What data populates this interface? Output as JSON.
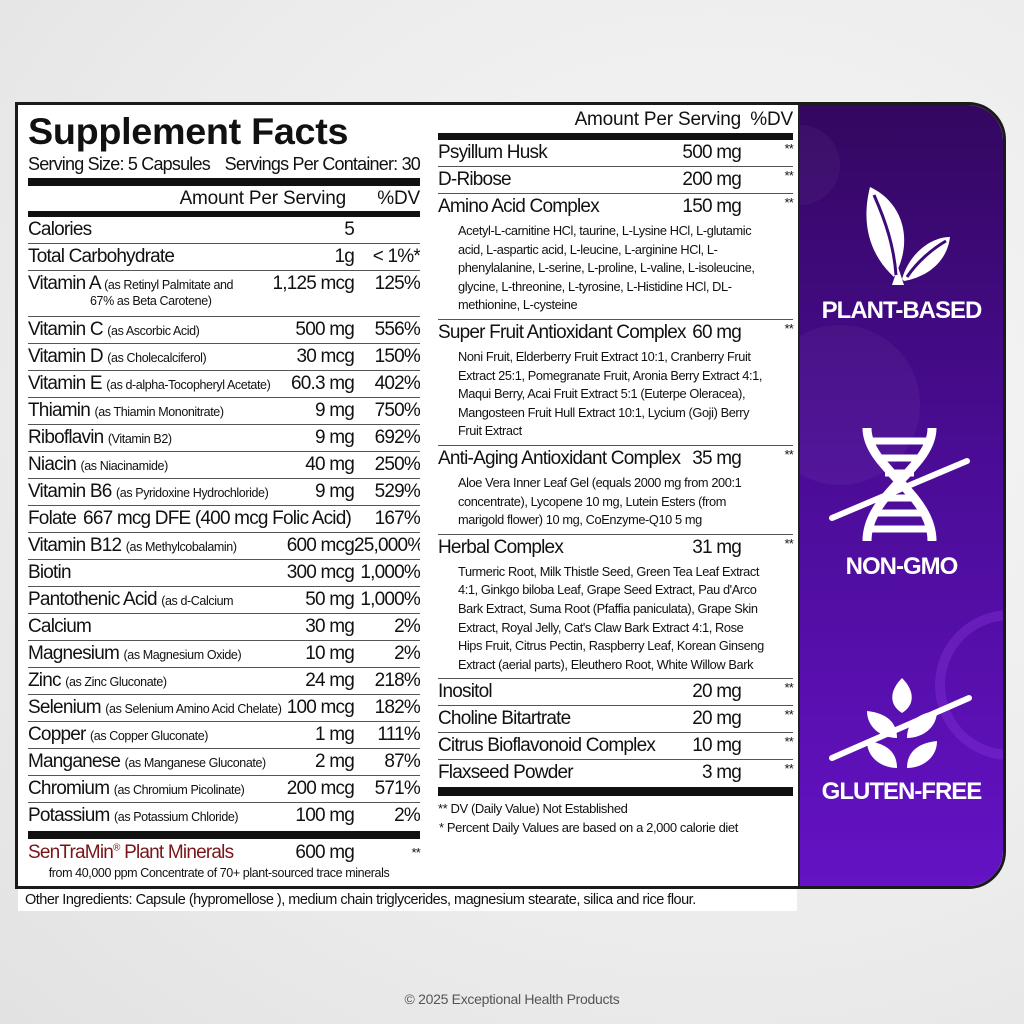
{
  "label": {
    "title": "Supplement Facts",
    "serving_size": "Serving Size: 5 Capsules",
    "servings_per_container": "Servings Per Container: 30",
    "amount_header": "Amount Per Serving",
    "dv_header": "%DV",
    "left_rows": [
      {
        "name": "Calories",
        "sub": "",
        "amount": "5",
        "dv": ""
      },
      {
        "name": "Total Carbohydrate",
        "sub": "",
        "amount": "1g",
        "dv": "< 1%*"
      },
      {
        "name": "Vitamin A",
        "sub": "(as Retinyl Palmitate and",
        "sub2": "67% as Beta Carotene)",
        "amount": "1,125 mcg",
        "dv": "125%"
      },
      {
        "name": "Vitamin C",
        "sub": "(as Ascorbic Acid)",
        "amount": "500 mg",
        "dv": "556%"
      },
      {
        "name": "Vitamin D",
        "sub": "(as Cholecalciferol)",
        "amount": "30 mcg",
        "dv": "150%"
      },
      {
        "name": "Vitamin E",
        "sub": "(as d-alpha-Tocopheryl Acetate)",
        "amount": "60.3 mg",
        "dv": "402%"
      },
      {
        "name": "Thiamin",
        "sub": "(as Thiamin Mononitrate)",
        "amount": "9 mg",
        "dv": "750%"
      },
      {
        "name": "Riboflavin",
        "sub": "(Vitamin B2)",
        "amount": "9 mg",
        "dv": "692%"
      },
      {
        "name": "Niacin",
        "sub": "(as Niacinamide)",
        "amount": "40 mg",
        "dv": "250%"
      },
      {
        "name": "Vitamin B6",
        "sub": "(as Pyridoxine Hydrochloride)",
        "amount": "9 mg",
        "dv": "529%"
      },
      {
        "name": "Folate",
        "sub": "",
        "amount": "667 mcg DFE (400 mcg Folic Acid)",
        "dv": "167%"
      },
      {
        "name": "Vitamin B12",
        "sub": "(as Methylcobalamin)",
        "amount": "600 mcg",
        "dv": "25,000%"
      },
      {
        "name": "Biotin",
        "sub": "",
        "amount": "300 mcg",
        "dv": "1,000%"
      },
      {
        "name": "Pantothenic Acid",
        "sub": "(as d-Calcium Pantothenate)",
        "amount": "50 mg",
        "dv": "1,000%"
      },
      {
        "name": "Calcium",
        "sub": "",
        "amount": "30 mg",
        "dv": "2%"
      },
      {
        "name": "Magnesium",
        "sub": "(as Magnesium Oxide)",
        "amount": "10 mg",
        "dv": "2%"
      },
      {
        "name": "Zinc",
        "sub": "(as Zinc Gluconate)",
        "amount": "24 mg",
        "dv": "218%"
      },
      {
        "name": "Selenium",
        "sub": "(as Selenium Amino Acid Chelate)",
        "amount": "100 mcg",
        "dv": "182%"
      },
      {
        "name": "Copper",
        "sub": "(as Copper Gluconate)",
        "amount": "1 mg",
        "dv": "111%"
      },
      {
        "name": "Manganese",
        "sub": "(as Manganese Gluconate)",
        "amount": "2 mg",
        "dv": "87%"
      },
      {
        "name": "Chromium",
        "sub": "(as Chromium Picolinate)",
        "amount": "200 mcg",
        "dv": "571%"
      },
      {
        "name": "Potassium",
        "sub": "(as Potassium Chloride)",
        "amount": "100 mg",
        "dv": "2%"
      }
    ],
    "sentramin": {
      "name": "SenTraMin",
      "reg": "®",
      "name_rest": " Plant Minerals",
      "amount": "600 mg",
      "dv": "**",
      "note": "from 40,000 ppm Concentrate of 70+ plant-sourced trace minerals"
    },
    "right_rows": [
      {
        "name": "Psyillum Husk",
        "amount": "500 mg",
        "dv": "**",
        "desc": ""
      },
      {
        "name": "D-Ribose",
        "amount": "200 mg",
        "dv": "**",
        "desc": ""
      },
      {
        "name": "Amino Acid Complex",
        "amount": "150 mg",
        "dv": "**",
        "desc": "Acetyl-L-carnitine HCl, taurine, L-Lysine HCl, L-glutamic acid, L-aspartic acid, L-leucine, L-arginine HCl, L-phenylalanine, L-serine, L-proline, L-valine, L-isoleucine, glycine, L-threonine, L-tyrosine, L-Histidine HCl, DL-methionine, L-cysteine"
      },
      {
        "name": "Super Fruit Antioxidant Complex",
        "amount": "60 mg",
        "dv": "**",
        "desc": "Noni Fruit, Elderberry Fruit Extract 10:1, Cranberry Fruit Extract 25:1, Pomegranate Fruit, Aronia Berry Extract 4:1, Maqui Berry, Acai Fruit Extract 5:1 (Euterpe Oleracea), Mangosteen Fruit Hull Extract 10:1, Lycium (Goji) Berry Fruit Extract"
      },
      {
        "name": "Anti-Aging Antioxidant Complex",
        "amount": "35 mg",
        "dv": "**",
        "desc": "Aloe Vera Inner Leaf Gel (equals 2000 mg from 200:1 concentrate), Lycopene 10 mg, Lutein Esters (from marigold flower) 10 mg, CoEnzyme-Q10 5 mg"
      },
      {
        "name": "Herbal Complex",
        "amount": "31 mg",
        "dv": "**",
        "desc": "Turmeric Root, Milk Thistle Seed, Green Tea Leaf Extract 4:1, Ginkgo biloba Leaf, Grape Seed Extract, Pau d'Arco Bark Extract, Suma Root (Pfaffia paniculata), Grape Skin Extract, Royal Jelly, Cat's Claw Bark Extract 4:1, Rose Hips Fruit, Citrus Pectin, Raspberry Leaf, Korean Ginseng Extract (aerial parts), Eleuthero Root, White Willow Bark"
      },
      {
        "name": "Inositol",
        "amount": "20 mg",
        "dv": "**",
        "desc": ""
      },
      {
        "name": "Choline Bitartrate",
        "amount": "20 mg",
        "dv": "**",
        "desc": ""
      },
      {
        "name": "Citrus Bioflavonoid Complex",
        "amount": "10 mg",
        "dv": "**",
        "desc": ""
      },
      {
        "name": "Flaxseed Powder",
        "amount": "3 mg",
        "dv": "**",
        "desc": ""
      }
    ],
    "footnote_dv": "** DV (Daily Value) Not Established",
    "footnote_percent": "*  Percent Daily Values are based on  a 2,000 calorie diet",
    "other_ingredients": "Other Ingredients: Capsule (hypromellose ), medium chain triglycerides, magnesium stearate, silica and rice flour."
  },
  "badges": [
    {
      "label": "PLANT-BASED",
      "icon": "leaves-icon"
    },
    {
      "label": "NON-GMO",
      "icon": "dna-crossed-icon"
    },
    {
      "label": "GLUTEN-FREE",
      "icon": "wheat-crossed-icon"
    }
  ],
  "colors": {
    "panel_top": "#330760",
    "panel_bottom": "#6412c4",
    "sentramin": "#7a1418"
  },
  "copyright": "© 2025 Exceptional Health Products"
}
